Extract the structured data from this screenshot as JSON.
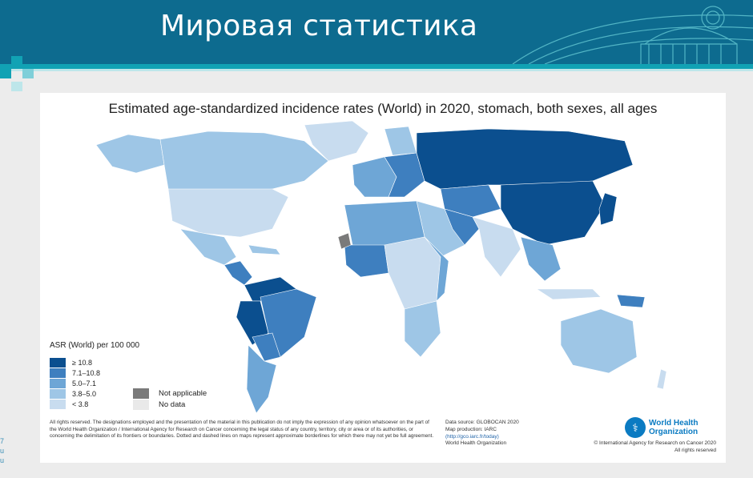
{
  "slide": {
    "title": "Мировая статистика",
    "edge_chars": [
      "7",
      "u",
      "u"
    ]
  },
  "colors": {
    "header_bg": "#0d6b8f",
    "accent": "#11a2b4",
    "class_1": "#0b4f8f",
    "class_2": "#3e7fbf",
    "class_3": "#6ea6d6",
    "class_4": "#9ec6e6",
    "class_5": "#c8dcef",
    "not_applicable": "#7a7a7a",
    "no_data": "#e9e9e9"
  },
  "map": {
    "title": "Estimated age-standardized incidence rates (World) in 2020, stomach, both sexes, all ages",
    "legend": {
      "title": "ASR (World) per 100 000",
      "classes": [
        {
          "label": "≥ 10.8",
          "color": "#0b4f8f"
        },
        {
          "label": "7.1–10.8",
          "color": "#3e7fbf"
        },
        {
          "label": "5.0–7.1",
          "color": "#6ea6d6"
        },
        {
          "label": "3.8–5.0",
          "color": "#9ec6e6"
        },
        {
          "label": "< 3.8",
          "color": "#c8dcef"
        }
      ],
      "not_applicable": "Not applicable",
      "no_data": "No data"
    },
    "disclaimer": "All rights reserved. The designations employed and the presentation of the material in this publication do not imply the expression of any opinion whatsoever on the part of the World Health Organization / International Agency for Research on Cancer concerning the legal status of any country, territory, city or area or of its authorities, or concerning the delimitation of its frontiers or boundaries. Dotted and dashed lines on maps represent approximate borderlines for which there may not yet be full agreement.",
    "source": {
      "line1": "Data source: GLOBOCAN 2020",
      "line2": "Map production: IARC",
      "line3": "(http://gco.iarc.fr/today)",
      "line4": "World Health Organization"
    },
    "who": {
      "line1": "World Health",
      "line2": "Organization"
    },
    "copyright": {
      "line1": "© International Agency for Research on Cancer 2020",
      "line2": "All rights reserved"
    }
  }
}
